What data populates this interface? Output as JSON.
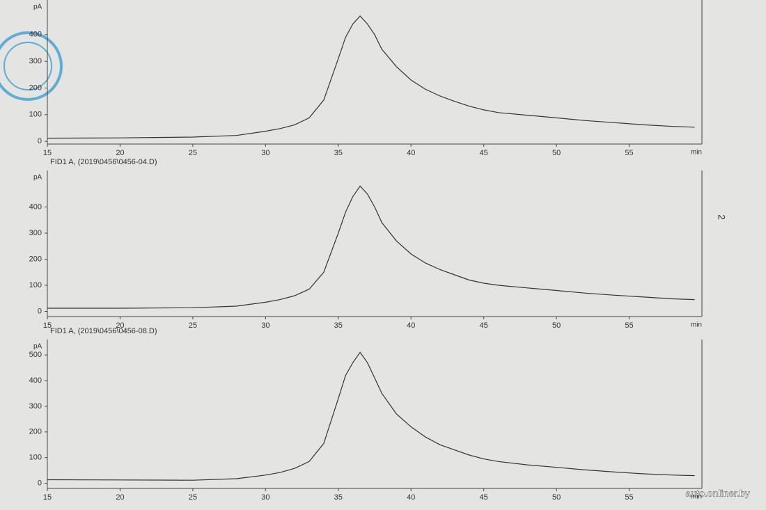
{
  "chart_data": [
    {
      "type": "line",
      "y_label": "pA",
      "x_label": "min",
      "xlim": [
        15,
        60
      ],
      "xticks": [
        15,
        20,
        25,
        30,
        35,
        40,
        45,
        50,
        55
      ],
      "ylim": [
        -10,
        530
      ],
      "yticks": [
        0,
        100,
        200,
        300,
        400
      ],
      "color": "#333333",
      "x": [
        15,
        20,
        25,
        28,
        30,
        31,
        32,
        33,
        34,
        35,
        35.5,
        36,
        36.5,
        37,
        37.5,
        38,
        39,
        40,
        41,
        42,
        43,
        44,
        45,
        46,
        48,
        50,
        52,
        54,
        56,
        58,
        59.5
      ],
      "values": [
        12,
        13,
        16,
        22,
        38,
        48,
        62,
        88,
        155,
        310,
        390,
        440,
        470,
        440,
        400,
        345,
        280,
        230,
        195,
        170,
        150,
        132,
        118,
        108,
        98,
        88,
        78,
        70,
        62,
        56,
        53
      ]
    },
    {
      "type": "line",
      "title": "FID1 A,  (2019\\0456\\0456-04.D)",
      "y_label": "pA",
      "x_label": "min",
      "xlim": [
        15,
        60
      ],
      "xticks": [
        15,
        20,
        25,
        30,
        35,
        40,
        45,
        50,
        55
      ],
      "ylim": [
        -20,
        540
      ],
      "yticks": [
        0,
        100,
        200,
        300,
        400
      ],
      "color": "#333333",
      "x": [
        15,
        20,
        25,
        28,
        30,
        31,
        32,
        33,
        34,
        35,
        35.5,
        36,
        36.5,
        37,
        37.5,
        38,
        39,
        40,
        41,
        42,
        43,
        44,
        45,
        46,
        48,
        50,
        52,
        54,
        56,
        58,
        59.5
      ],
      "values": [
        12,
        12,
        14,
        20,
        35,
        45,
        60,
        85,
        150,
        300,
        380,
        440,
        480,
        450,
        400,
        340,
        270,
        220,
        185,
        160,
        140,
        120,
        108,
        100,
        90,
        80,
        70,
        62,
        55,
        48,
        45
      ]
    },
    {
      "type": "line",
      "title": "FID1 A,  (2019\\0456\\0456-08.D)",
      "y_label": "pA",
      "x_label": "min",
      "xlim": [
        15,
        60
      ],
      "xticks": [
        15,
        20,
        25,
        30,
        35,
        40,
        45,
        50,
        55
      ],
      "ylim": [
        -20,
        560
      ],
      "yticks": [
        0,
        100,
        200,
        300,
        400,
        500
      ],
      "color": "#333333",
      "x": [
        15,
        20,
        25,
        28,
        30,
        31,
        32,
        33,
        34,
        35,
        35.5,
        36,
        36.5,
        37,
        37.5,
        38,
        39,
        40,
        41,
        42,
        43,
        44,
        45,
        46,
        48,
        50,
        52,
        54,
        56,
        58,
        59.5
      ],
      "values": [
        14,
        13,
        12,
        18,
        32,
        42,
        58,
        85,
        155,
        330,
        420,
        470,
        510,
        470,
        410,
        350,
        270,
        220,
        180,
        150,
        130,
        110,
        95,
        85,
        72,
        62,
        52,
        44,
        37,
        32,
        30
      ]
    }
  ],
  "page_number": "2",
  "watermark": "auto.onliner.by"
}
